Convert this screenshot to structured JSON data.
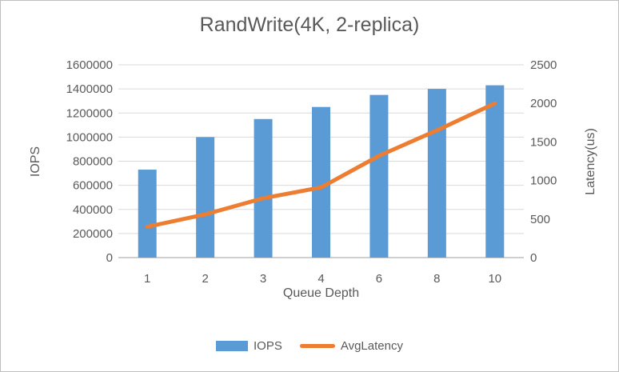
{
  "style": {
    "background": "#ffffff",
    "border_color": "#bfbfbf",
    "text_color": "#595959",
    "gridline_color": "#d9d9d9",
    "axis_line_color": "#bfbfbf",
    "bar_color": "#5b9bd5",
    "line_color": "#ed7d31"
  },
  "chart_data": {
    "type": "combo-bar-line",
    "title": "RandWrite(4K, 2-replica)",
    "xlabel": "Queue Depth",
    "categories": [
      "1",
      "2",
      "3",
      "4",
      "6",
      "8",
      "10"
    ],
    "grid": true,
    "legend_position": "bottom",
    "series": [
      {
        "name": "IOPS",
        "type": "bar",
        "axis": "left",
        "color": "#5b9bd5",
        "values": [
          730000,
          1000000,
          1150000,
          1250000,
          1350000,
          1400000,
          1430000
        ]
      },
      {
        "name": "AvgLatency",
        "type": "line",
        "axis": "right",
        "color": "#ed7d31",
        "values": [
          400,
          560,
          770,
          910,
          1320,
          1650,
          2000
        ]
      }
    ],
    "left_axis": {
      "label": "IOPS",
      "min": 0,
      "max": 1600000,
      "step": 200000,
      "tick_labels": [
        "0",
        "200000",
        "400000",
        "600000",
        "800000",
        "1000000",
        "1200000",
        "1400000",
        "1600000"
      ]
    },
    "right_axis": {
      "label": "Latency(us)",
      "min": 0,
      "max": 2500,
      "step": 500,
      "tick_labels": [
        "0",
        "500",
        "1000",
        "1500",
        "2000",
        "2500"
      ]
    }
  }
}
